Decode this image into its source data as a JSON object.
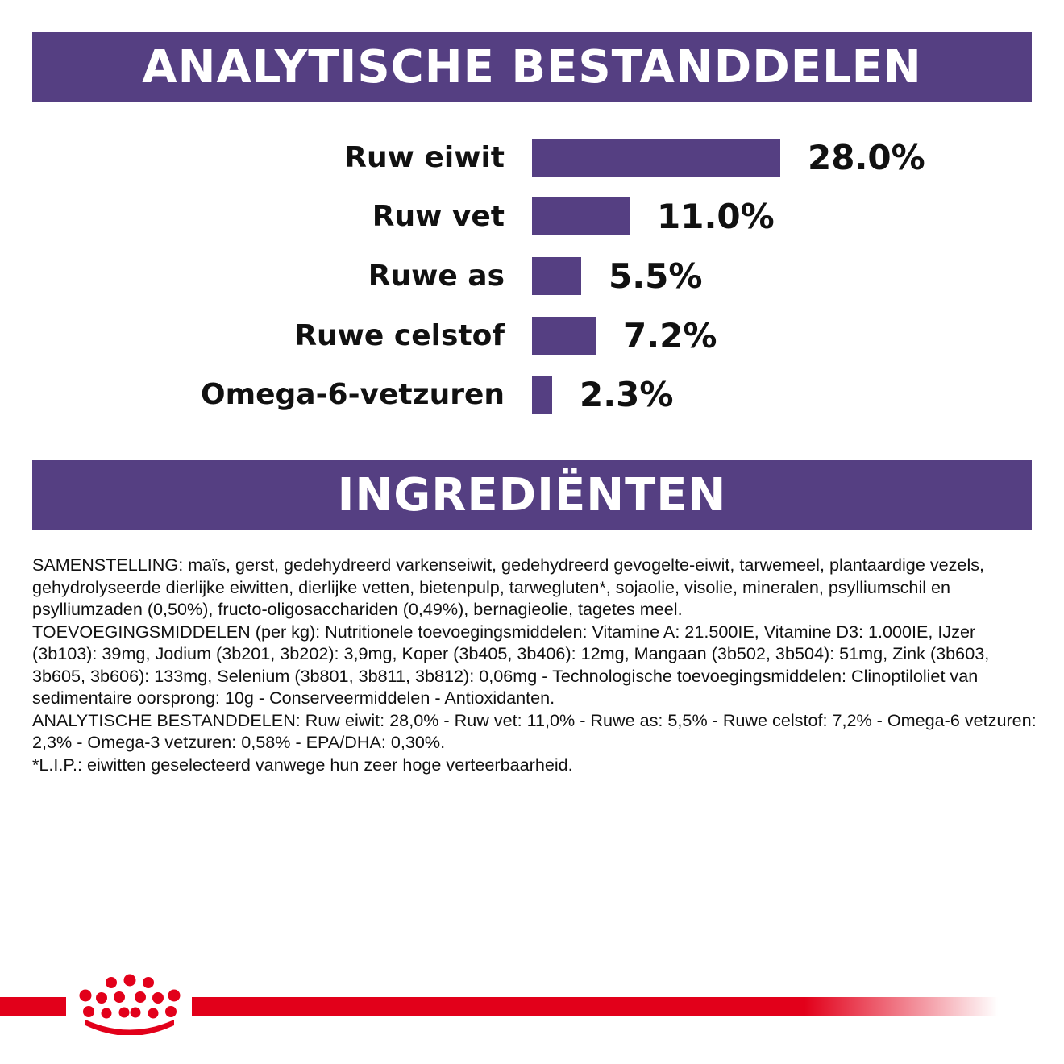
{
  "analysis": {
    "title": "ANALYTISCHE BESTANDDELEN",
    "items": [
      {
        "label": "Ruw eiwit",
        "value_text": "28.0%",
        "value": 28.0
      },
      {
        "label": "Ruw vet",
        "value_text": "11.0%",
        "value": 11.0
      },
      {
        "label": "Ruwe as",
        "value_text": "5.5%",
        "value": 5.5
      },
      {
        "label": "Ruwe celstof",
        "value_text": "7.2%",
        "value": 7.2
      },
      {
        "label": "Omega-6-vetzuren",
        "value_text": "2.3%",
        "value": 2.3
      }
    ]
  },
  "chart_data": {
    "type": "bar",
    "categories": [
      "Ruw eiwit",
      "Ruw vet",
      "Ruwe as",
      "Ruwe celstof",
      "Omega-6-vetzuren"
    ],
    "values": [
      28.0,
      11.0,
      5.5,
      7.2,
      2.3
    ],
    "title": "ANALYTISCHE BESTANDDELEN",
    "orientation": "horizontal",
    "bar_color": "#553f82"
  },
  "ingredients": {
    "title": "INGREDIËNTEN",
    "paragraphs": [
      "SAMENSTELLING: maïs, gerst, gedehydreerd varkenseiwit, gedehydreerd gevogelte-eiwit, tarwemeel, plantaardige vezels, gehydrolyseerde dierlijke eiwitten, dierlijke vetten, bietenpulp, tarwegluten*, sojaolie, visolie, mineralen, psylliumschil en psylliumzaden (0,50%), fructo-oligosacchariden (0,49%), bernagieolie, tagetes meel.",
      "TOEVOEGINGSMIDDELEN (per kg): Nutritionele toevoegingsmiddelen: Vitamine A: 21.500IE, Vitamine D3: 1.000IE, IJzer (3b103): 39mg, Jodium (3b201, 3b202): 3,9mg, Koper (3b405, 3b406): 12mg, Mangaan (3b502, 3b504): 51mg, Zink (3b603, 3b605, 3b606): 133mg, Selenium (3b801, 3b811, 3b812): 0,06mg - Technologische toevoegingsmiddelen: Clinoptiloliet van sedimentaire oorsprong: 10g - Conserveermiddelen - Antioxidanten.",
      "ANALYTISCHE BESTANDDELEN: Ruw eiwit: 28,0% - Ruw vet: 11,0% - Ruwe as: 5,5% - Ruwe celstof: 7,2% - Omega-6 vetzuren: 2,3% - Omega-3 vetzuren: 0,58% - EPA/DHA: 0,30%.",
      "*L.I.P.: eiwitten geselecteerd vanwege hun zeer hoge verteerbaarheid."
    ]
  },
  "footer": {
    "logo_icon": "crown-icon",
    "accent_color": "#e2001a"
  },
  "colors": {
    "banner": "#553f82",
    "bar": "#553f82",
    "text": "#111111",
    "accent": "#e2001a"
  }
}
